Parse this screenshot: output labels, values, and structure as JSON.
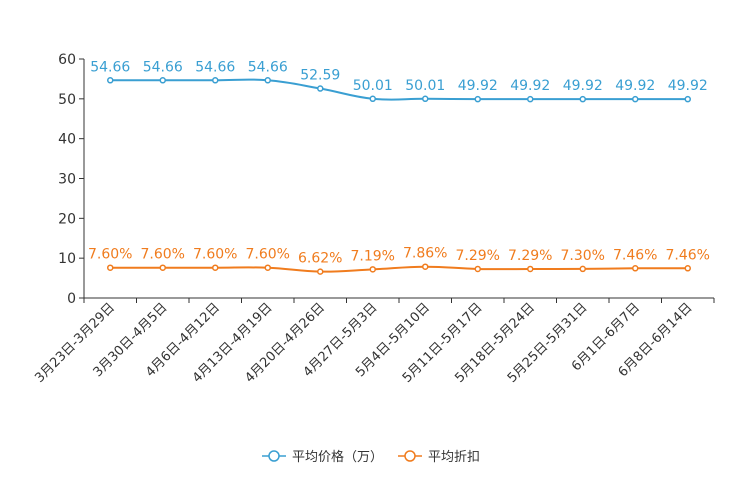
{
  "chart_data": {
    "type": "line",
    "title": "",
    "xlabel": "",
    "ylabel": "",
    "ylim": [
      0,
      60
    ],
    "yticks": [
      "0",
      "10",
      "20",
      "30",
      "40",
      "50",
      "60"
    ],
    "categories": [
      "3月23日-3月29日",
      "3月30日-4月5日",
      "4月6日-4月12日",
      "4月13日-4月19日",
      "4月20日-4月26日",
      "4月27日-5月3日",
      "5月4日-5月10日",
      "5月11日-5月17日",
      "5月18日-5月24日",
      "5月25日-5月31日",
      "6月1日-6月7日",
      "6月8日-6月14日"
    ],
    "series": [
      {
        "name": "平均价格（万）",
        "color": "#3a9fd2",
        "values": [
          54.66,
          54.66,
          54.66,
          54.66,
          52.59,
          50.01,
          50.01,
          49.92,
          49.92,
          49.92,
          49.92,
          49.92
        ],
        "labels": [
          "54.66",
          "54.66",
          "54.66",
          "54.66",
          "52.59",
          "50.01",
          "50.01",
          "49.92",
          "49.92",
          "49.92",
          "49.92",
          "49.92"
        ]
      },
      {
        "name": "平均折扣",
        "color": "#f07c1e",
        "values": [
          7.6,
          7.6,
          7.6,
          7.6,
          6.62,
          7.19,
          7.86,
          7.29,
          7.29,
          7.3,
          7.46,
          7.46
        ],
        "labels": [
          "7.60%",
          "7.60%",
          "7.60%",
          "7.60%",
          "6.62%",
          "7.19%",
          "7.86%",
          "7.29%",
          "7.29%",
          "7.30%",
          "7.46%",
          "7.46%"
        ]
      }
    ],
    "legend_position": "bottom-center",
    "grid": false
  }
}
